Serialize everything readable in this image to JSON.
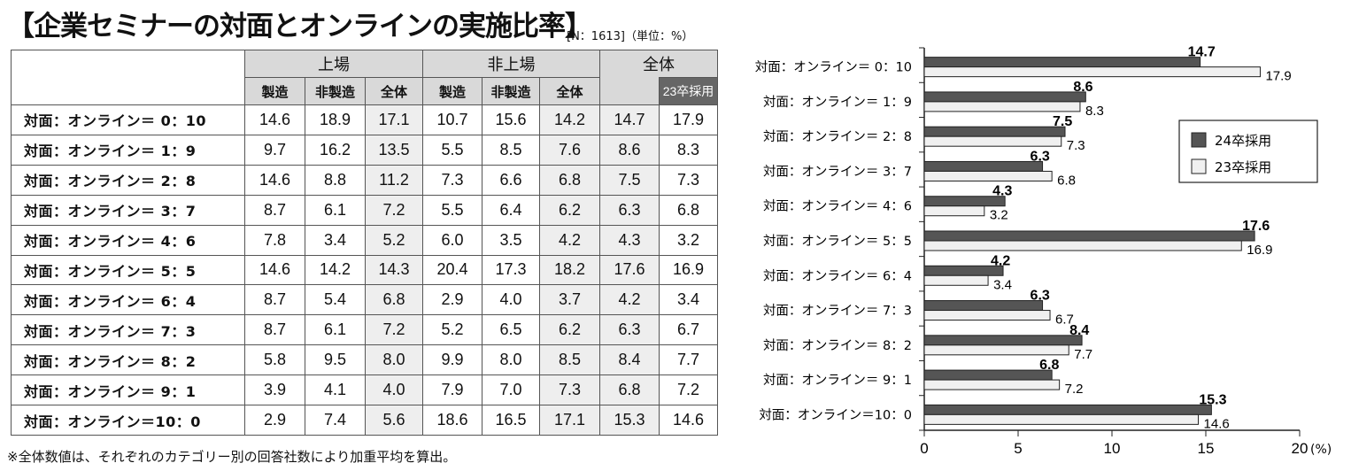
{
  "title": "【企業セミナーの対面とオンラインの実施比率】",
  "sample_note": "[N：1613]（単位：%）",
  "footnote": "※全体数値は、それぞれのカテゴリー別の回答社数により加重平均を算出。",
  "table": {
    "group_headers": {
      "listed": "上場",
      "unlisted": "非上場",
      "total": "全体"
    },
    "sub_headers": [
      "製造",
      "非製造",
      "全体",
      "製造",
      "非製造",
      "全体",
      "23卒採用"
    ],
    "rows": [
      {
        "label": "対面：オンライン＝ 0：10",
        "values": [
          "14.6",
          "18.9",
          "17.1",
          "10.7",
          "15.6",
          "14.2",
          "14.7",
          "17.9"
        ]
      },
      {
        "label": "対面：オンライン＝ 1：9",
        "values": [
          "9.7",
          "16.2",
          "13.5",
          "5.5",
          "8.5",
          "7.6",
          "8.6",
          "8.3"
        ]
      },
      {
        "label": "対面：オンライン＝ 2：8",
        "values": [
          "14.6",
          "8.8",
          "11.2",
          "7.3",
          "6.6",
          "6.8",
          "7.5",
          "7.3"
        ]
      },
      {
        "label": "対面：オンライン＝ 3：7",
        "values": [
          "8.7",
          "6.1",
          "7.2",
          "5.5",
          "6.4",
          "6.2",
          "6.3",
          "6.8"
        ]
      },
      {
        "label": "対面：オンライン＝ 4：6",
        "values": [
          "7.8",
          "3.4",
          "5.2",
          "6.0",
          "3.5",
          "4.2",
          "4.3",
          "3.2"
        ]
      },
      {
        "label": "対面：オンライン＝ 5：5",
        "values": [
          "14.6",
          "14.2",
          "14.3",
          "20.4",
          "17.3",
          "18.2",
          "17.6",
          "16.9"
        ]
      },
      {
        "label": "対面：オンライン＝ 6：4",
        "values": [
          "8.7",
          "5.4",
          "6.8",
          "2.9",
          "4.0",
          "3.7",
          "4.2",
          "3.4"
        ]
      },
      {
        "label": "対面：オンライン＝ 7：3",
        "values": [
          "8.7",
          "6.1",
          "7.2",
          "5.2",
          "6.5",
          "6.2",
          "6.3",
          "6.7"
        ]
      },
      {
        "label": "対面：オンライン＝ 8：2",
        "values": [
          "5.8",
          "9.5",
          "8.0",
          "9.9",
          "8.0",
          "8.5",
          "8.4",
          "7.7"
        ]
      },
      {
        "label": "対面：オンライン＝ 9：1",
        "values": [
          "3.9",
          "4.1",
          "4.0",
          "7.9",
          "7.0",
          "7.3",
          "6.8",
          "7.2"
        ]
      },
      {
        "label": "対面：オンライン＝10：0",
        "values": [
          "2.9",
          "7.4",
          "5.6",
          "18.6",
          "16.5",
          "17.1",
          "15.3",
          "14.6"
        ]
      }
    ]
  },
  "chart_data": {
    "type": "bar",
    "orientation": "horizontal",
    "categories": [
      "対面：オンライン＝ 0：10",
      "対面：オンライン＝ 1：9",
      "対面：オンライン＝ 2：8",
      "対面：オンライン＝ 3：7",
      "対面：オンライン＝ 4：6",
      "対面：オンライン＝ 5：5",
      "対面：オンライン＝ 6：4",
      "対面：オンライン＝ 7：3",
      "対面：オンライン＝ 8：2",
      "対面：オンライン＝ 9：1",
      "対面：オンライン＝10：0"
    ],
    "series": [
      {
        "name": "24卒採用",
        "values": [
          14.7,
          8.6,
          7.5,
          6.3,
          4.3,
          17.6,
          4.2,
          6.3,
          8.4,
          6.8,
          15.3
        ],
        "color": "#555555"
      },
      {
        "name": "23卒採用",
        "values": [
          17.9,
          8.3,
          7.3,
          6.8,
          3.2,
          16.9,
          3.4,
          6.7,
          7.7,
          7.2,
          14.6
        ],
        "color": "#f0f0f0"
      }
    ],
    "xlim": [
      0,
      20
    ],
    "xticks": [
      "0",
      "5",
      "10",
      "15",
      "20"
    ],
    "unit_label": "(%)",
    "legend_position": "right"
  }
}
